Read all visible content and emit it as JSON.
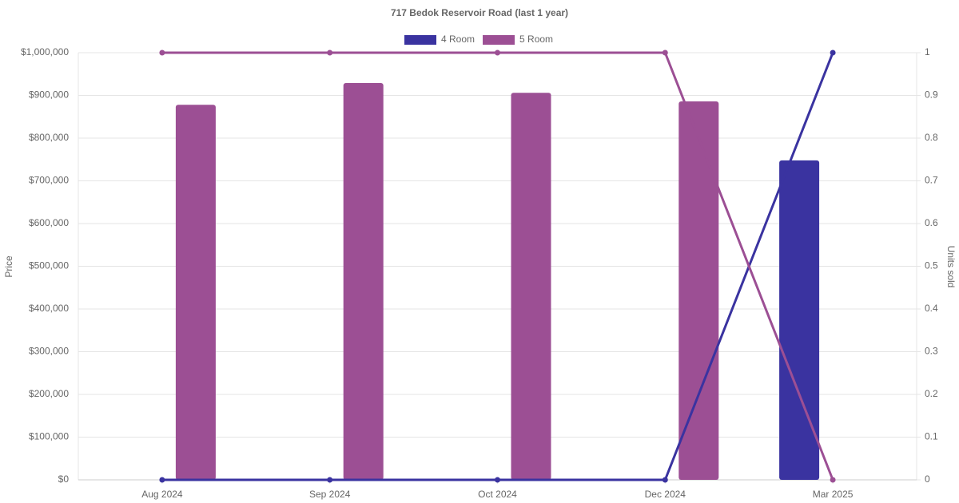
{
  "chart_data": {
    "type": "bar-line",
    "title": "717 Bedok Reservoir Road (last 1 year)",
    "y_label": "Price",
    "y2_label": "Units sold",
    "categories": [
      "Aug 2024",
      "Sep 2024",
      "Oct 2024",
      "Dec 2024",
      "Mar 2025"
    ],
    "series": [
      {
        "name": "4 Room",
        "color": "#3a33a0",
        "values": [
          null,
          null,
          null,
          null,
          748000
        ],
        "y2_values": [
          0,
          0,
          0,
          0,
          1
        ]
      },
      {
        "name": "5 Room",
        "color": "#9c4f94",
        "values": [
          878000,
          929000,
          906000,
          886000,
          null
        ],
        "y2_values": [
          1,
          1,
          1,
          1,
          0
        ]
      }
    ],
    "ylim": [
      0,
      1000000
    ],
    "yticks": [
      {
        "value": 0,
        "label": "$0"
      },
      {
        "value": 100000,
        "label": "$100,000"
      },
      {
        "value": 200000,
        "label": "$200,000"
      },
      {
        "value": 300000,
        "label": "$300,000"
      },
      {
        "value": 400000,
        "label": "$400,000"
      },
      {
        "value": 500000,
        "label": "$500,000"
      },
      {
        "value": 600000,
        "label": "$600,000"
      },
      {
        "value": 700000,
        "label": "$700,000"
      },
      {
        "value": 800000,
        "label": "$800,000"
      },
      {
        "value": 900000,
        "label": "$900,000"
      },
      {
        "value": 1000000,
        "label": "$1,000,000"
      }
    ],
    "y2lim": [
      0,
      1
    ],
    "y2ticks": [
      0,
      0.1,
      0.2,
      0.3,
      0.4,
      0.5,
      0.6,
      0.7,
      0.8,
      0.9,
      1
    ],
    "grid": true,
    "legend": "top"
  }
}
